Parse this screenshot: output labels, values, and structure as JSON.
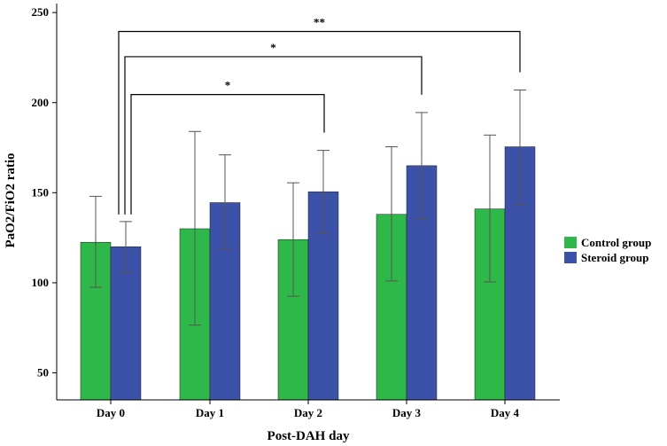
{
  "chart_data": {
    "type": "bar",
    "title": "",
    "xlabel": "Post-DAH day",
    "ylabel": "PaO2/FiO2 ratio",
    "categories": [
      "Day 0",
      "Day 1",
      "Day 2",
      "Day 3",
      "Day 4"
    ],
    "ylim": [
      35,
      255
    ],
    "yticks": [
      50,
      100,
      150,
      200,
      250
    ],
    "grid": false,
    "legend_position": "right",
    "series": [
      {
        "name": "Control group",
        "color": "#2fb84a",
        "values": [
          122.5,
          130,
          124,
          138,
          141
        ],
        "error_low": [
          97.5,
          76.5,
          92.5,
          101,
          100.5
        ],
        "error_high": [
          148,
          184,
          155.5,
          175.5,
          182
        ]
      },
      {
        "name": "Steroid group",
        "color": "#3c52a8",
        "values": [
          120,
          144.5,
          150.5,
          165,
          175.5
        ],
        "error_low": [
          106,
          118.5,
          127.5,
          135.5,
          143.5
        ],
        "error_high": [
          134,
          171,
          173.5,
          194.5,
          207
        ]
      }
    ],
    "annotations": [
      {
        "label": "*",
        "from": "Day 0",
        "to": "Day 2",
        "y": 204.5
      },
      {
        "label": "*",
        "from": "Day 0",
        "to": "Day 3",
        "y": 225.5
      },
      {
        "label": "**",
        "from": "Day 0",
        "to": "Day 4",
        "y": 239.5
      }
    ]
  }
}
